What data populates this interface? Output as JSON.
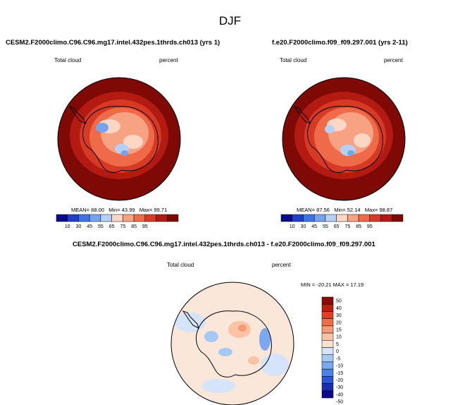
{
  "page": {
    "title": "DJF"
  },
  "colors": {
    "scale11": [
      "#0a0a8a",
      "#1f3fc8",
      "#3d74e6",
      "#77a3ee",
      "#b6d0f5",
      "#fdd7c4",
      "#f7a283",
      "#ee6a48",
      "#d63a24",
      "#b31b12",
      "#7f0a05"
    ],
    "diff14": [
      "#0a0a8a",
      "#1a2fb0",
      "#2a55d6",
      "#4a82e8",
      "#7ba8ef",
      "#a8c8f4",
      "#d5e4f9",
      "#fde2d2",
      "#fbc2a5",
      "#f79a74",
      "#ef6d47",
      "#dc4125",
      "#bc1f10",
      "#8a0a06"
    ],
    "coast": "#000000",
    "frame": "#000000"
  },
  "panels": {
    "left": {
      "title": "CESM2.F2000climo.C96.C96.mg17.intel.432pes.1thrds.ch013 (yrs 1)",
      "var_label": "Total cloud",
      "units_label": "percent",
      "stats": {
        "mean_label": "MEAN=",
        "mean": "88.00",
        "min_label": "Min=",
        "min": "43.99",
        "max_label": "Max=",
        "max": "99.71"
      }
    },
    "right": {
      "title": "f.e20.F2000climo.f09_f09.297.001 (yrs 2-11)",
      "var_label": "Total cloud",
      "units_label": "percent",
      "stats": {
        "mean_label": "MEAN=",
        "mean": "87.56",
        "min_label": "Min=",
        "min": "52.14",
        "max_label": "Max=",
        "max": "98.87"
      }
    },
    "diff": {
      "title": "CESM2.F2000climo.C96.C96.mg17.intel.432pes.1thrds.ch013 - f.e20.F2000climo.f09_f09.297.001",
      "var_label": "Total cloud",
      "units_label": "percent",
      "stats_text": "MIN = -20.21  MAX = 17.19"
    }
  },
  "chart_data": [
    {
      "type": "heatmap",
      "projection": "south-polar-stereographic",
      "title": "CESM2.F2000climo.C96.C96.mg17.intel.432pes.1thrds.ch013 (yrs 1)",
      "variable": "Total cloud",
      "units": "percent",
      "stats": {
        "mean": 88.0,
        "min": 43.99,
        "max": 99.71
      },
      "colorbar": {
        "labels": [
          "10",
          "30",
          "45",
          "55",
          "65",
          "75",
          "85",
          "95"
        ],
        "values": [
          10,
          30,
          45,
          55,
          65,
          75,
          85,
          95
        ]
      }
    },
    {
      "type": "heatmap",
      "projection": "south-polar-stereographic",
      "title": "f.e20.F2000climo.f09_f09.297.001 (yrs 2-11)",
      "variable": "Total cloud",
      "units": "percent",
      "stats": {
        "mean": 87.56,
        "min": 52.14,
        "max": 98.87
      },
      "colorbar": {
        "labels": [
          "10",
          "30",
          "45",
          "55",
          "65",
          "75",
          "85",
          "95"
        ],
        "values": [
          10,
          30,
          45,
          55,
          65,
          75,
          85,
          95
        ]
      }
    },
    {
      "type": "heatmap",
      "projection": "south-polar-stereographic",
      "title": "CESM2.F2000climo.C96.C96.mg17.intel.432pes.1thrds.ch013 - f.e20.F2000climo.f09_f09.297.001",
      "variable": "Total cloud",
      "units": "percent",
      "stats": {
        "min": -20.21,
        "max": 17.19
      },
      "colorbar": {
        "labels": [
          "50",
          "40",
          "30",
          "20",
          "15",
          "10",
          "5",
          "0",
          "-5",
          "-10",
          "-15",
          "-20",
          "-30",
          "-40",
          "-50"
        ],
        "values": [
          50,
          40,
          30,
          20,
          15,
          10,
          5,
          0,
          -5,
          -10,
          -15,
          -20,
          -30,
          -40,
          -50
        ]
      }
    }
  ]
}
